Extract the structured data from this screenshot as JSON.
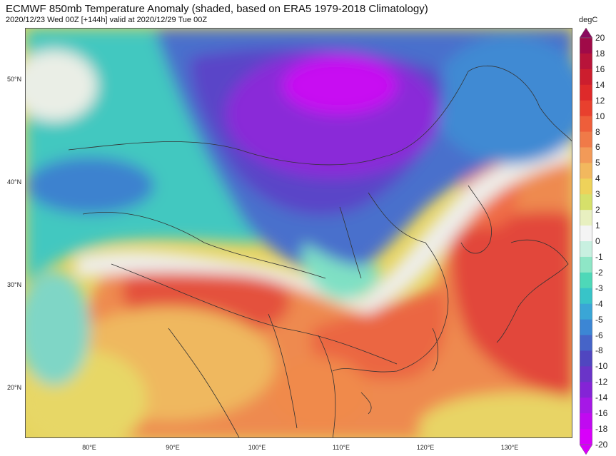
{
  "header": {
    "title": "ECMWF 850mb Temperature Anomaly (shaded, based on ERA5 1979-2018 Climatology)",
    "subtitle": "2020/12/23 Wed 00Z [+144h] valid at 2020/12/29 Tue 00Z"
  },
  "map": {
    "lat_labels": [
      "50°N",
      "40°N",
      "30°N",
      "20°N"
    ],
    "lon_labels": [
      "80°E",
      "90°E",
      "100°E",
      "110°E",
      "120°E",
      "130°E"
    ]
  },
  "colorbar": {
    "unit": "degC",
    "levels": [
      "20",
      "18",
      "16",
      "14",
      "12",
      "10",
      "8",
      "6",
      "5",
      "4",
      "3",
      "2",
      "1",
      "0",
      "-1",
      "-2",
      "-3",
      "-4",
      "-5",
      "-6",
      "-8",
      "-10",
      "-12",
      "-14",
      "-16",
      "-18",
      "-20"
    ],
    "colors": [
      "#8a0a5e",
      "#a00a48",
      "#b8143a",
      "#cc1e2e",
      "#de2a2a",
      "#e8402e",
      "#ee5e3a",
      "#f07a48",
      "#f29a58",
      "#f2b85e",
      "#eed25a",
      "#d6e06a",
      "#e8f0c0",
      "#f4f4f4",
      "#c8f0e0",
      "#8ee6c6",
      "#4ed8b8",
      "#38c4c8",
      "#3aa6d6",
      "#3c86d4",
      "#4664c8",
      "#5046c0",
      "#6a34c8",
      "#8424d6",
      "#a618e6",
      "#c00af0",
      "#d800fa"
    ]
  },
  "legend_colors": {
    "deep_warm": "#e2463a",
    "warm": "#ef7a4a",
    "mild": "#f1b35f",
    "yellow": "#e9d664",
    "neutral": "#eeeeea",
    "cool": "#7fe0c4",
    "teal": "#40c6c0",
    "blue": "#3d82cf",
    "indigo": "#5846c6",
    "purple": "#8a2ad8",
    "magenta": "#c80cf2"
  }
}
